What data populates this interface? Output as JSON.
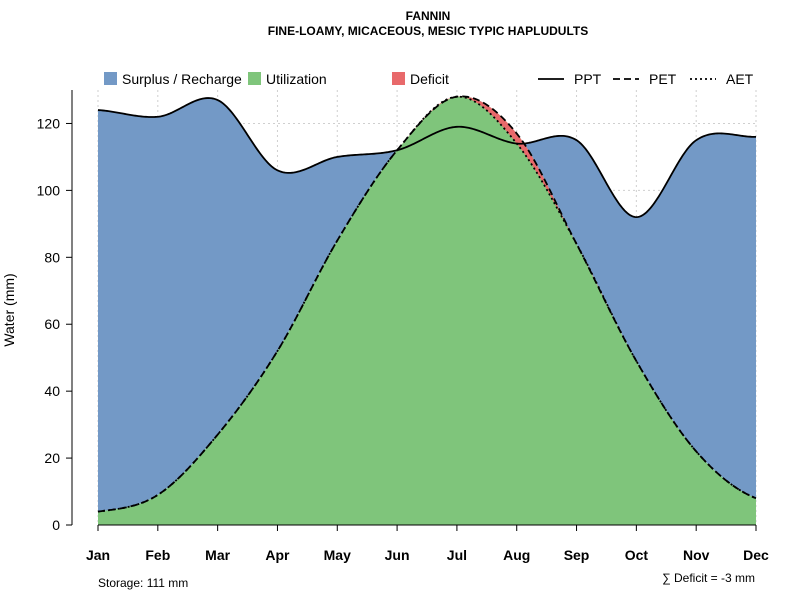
{
  "chart_data": {
    "type": "area",
    "title": "FANNIN",
    "subtitle": "FINE-LOAMY, MICACEOUS, MESIC TYPIC HAPLUDULTS",
    "ylabel": "Water (mm)",
    "xlabel": "",
    "ylim": [
      0,
      130
    ],
    "yticks": [
      0,
      20,
      40,
      60,
      80,
      100,
      120
    ],
    "categories": [
      "Jan",
      "Feb",
      "Mar",
      "Apr",
      "May",
      "Jun",
      "Jul",
      "Aug",
      "Sep",
      "Oct",
      "Nov",
      "Dec"
    ],
    "grid": true,
    "legend": [
      {
        "label": "Surplus / Recharge",
        "kind": "fill",
        "color": "#7399c6"
      },
      {
        "label": "Utilization",
        "kind": "fill",
        "color": "#7fc57b"
      },
      {
        "label": "Deficit",
        "kind": "fill",
        "color": "#e8696b"
      },
      {
        "label": "PPT",
        "kind": "line",
        "dash": "solid"
      },
      {
        "label": "PET",
        "kind": "line",
        "dash": "dashed"
      },
      {
        "label": "AET",
        "kind": "line",
        "dash": "dotted"
      }
    ],
    "legend_position": "top",
    "series": [
      {
        "name": "PPT",
        "values": [
          124,
          122,
          127,
          106,
          110,
          112,
          119,
          114,
          115,
          92,
          115,
          116
        ]
      },
      {
        "name": "PET",
        "values": [
          4,
          9,
          27,
          52,
          85,
          112,
          128,
          117,
          84,
          49,
          22,
          8
        ]
      },
      {
        "name": "AET",
        "values": [
          4,
          9,
          27,
          52,
          85,
          112,
          128,
          114,
          84,
          49,
          22,
          8
        ]
      }
    ],
    "annotations": {
      "storage": "Storage: 111 mm",
      "deficit": "∑ Deficit = -3 mm"
    }
  }
}
